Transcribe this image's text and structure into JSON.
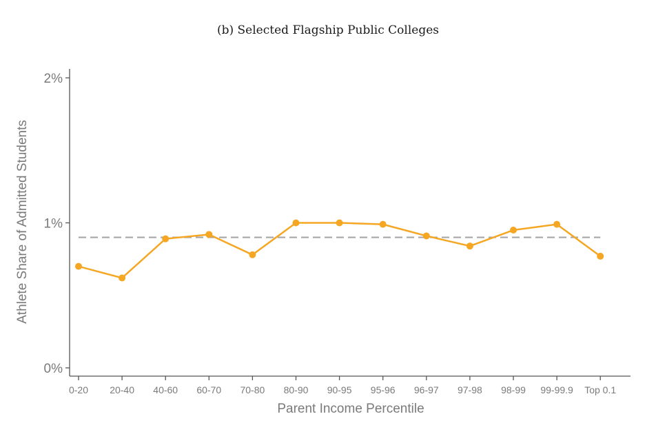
{
  "chart_data": {
    "type": "line",
    "title": "(b) Selected Flagship Public Colleges",
    "xlabel": "Parent Income Percentile",
    "ylabel": "Athlete Share of Admitted Students",
    "categories": [
      "0-20",
      "20-40",
      "40-60",
      "60-70",
      "70-80",
      "80-90",
      "90-95",
      "95-96",
      "96-97",
      "97-98",
      "98-99",
      "99-99.9",
      "Top 0.1"
    ],
    "series": [
      {
        "color": "#f5a623",
        "values": [
          0.7,
          0.62,
          0.89,
          0.92,
          0.78,
          1.0,
          1.0,
          0.99,
          0.91,
          0.84,
          0.95,
          0.99,
          0.77
        ]
      }
    ],
    "reference_line": {
      "value": 0.9,
      "style": "dashed",
      "color": "#a6a6a6"
    },
    "ylim": [
      0,
      2
    ],
    "yticks": [
      0,
      1,
      2
    ],
    "ytick_labels": [
      "0%",
      "1%",
      "2%"
    ],
    "grid": false,
    "legend": "none"
  }
}
